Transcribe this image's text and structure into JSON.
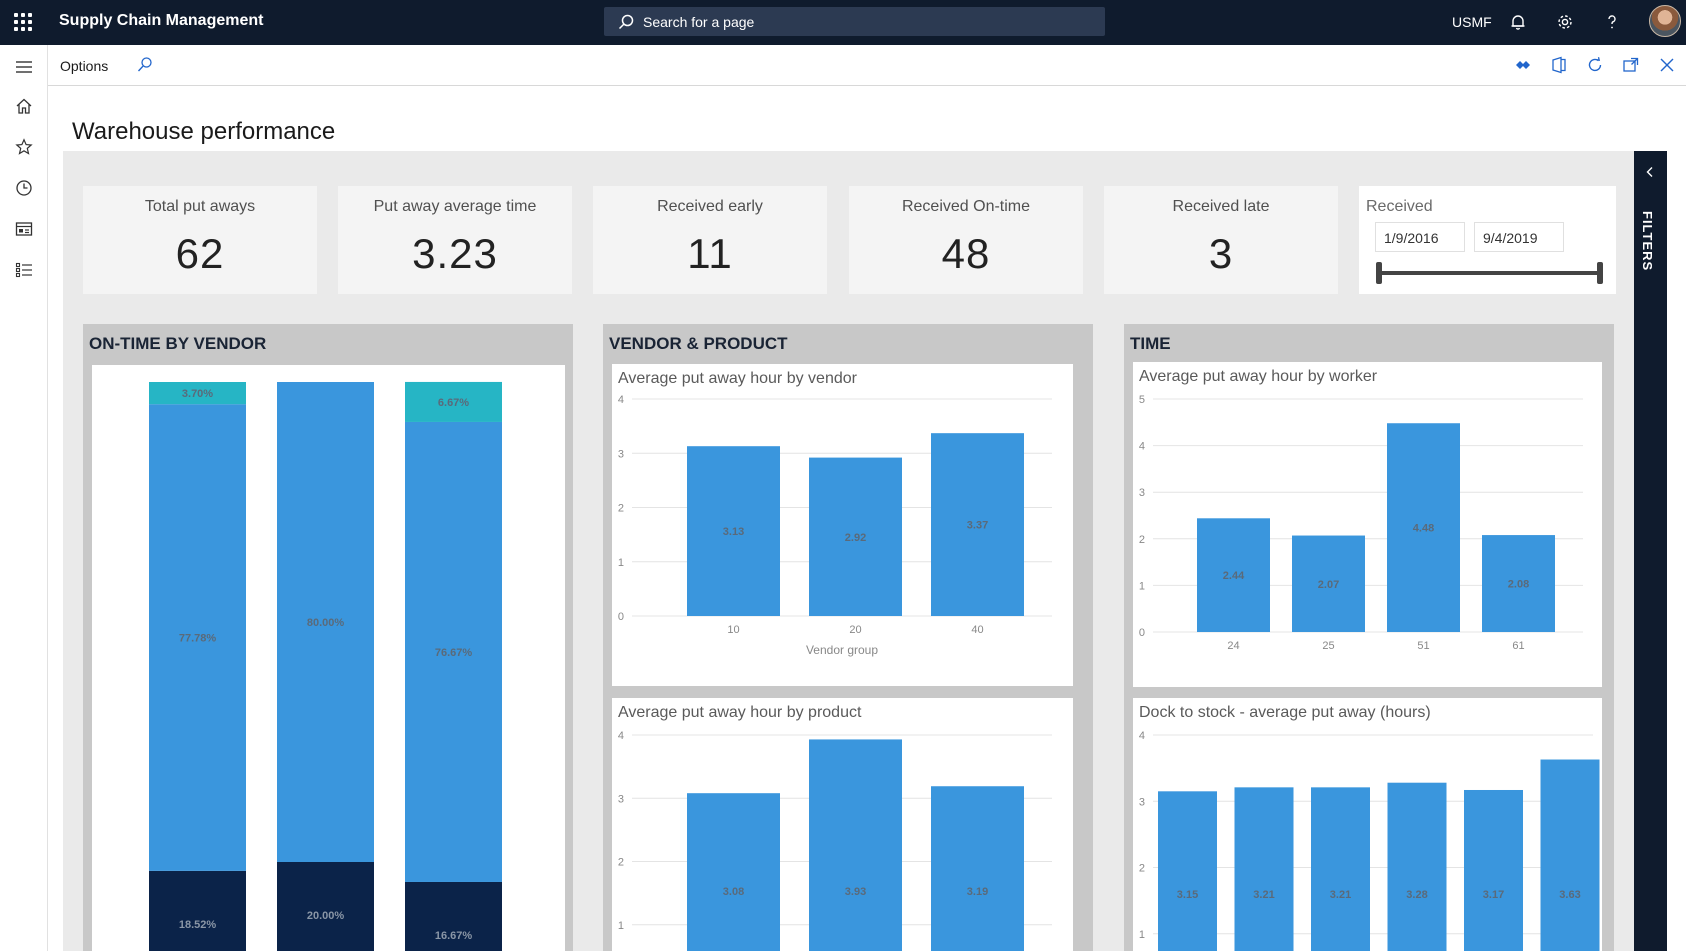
{
  "header": {
    "app_title": "Supply Chain Management",
    "search_placeholder": "Search for a page",
    "company": "USMF"
  },
  "actionbar": {
    "options_label": "Options"
  },
  "page": {
    "title": "Warehouse performance"
  },
  "kpis": [
    {
      "label": "Total put aways",
      "value": "62"
    },
    {
      "label": "Put away average time",
      "value": "3.23"
    },
    {
      "label": "Received early",
      "value": "11"
    },
    {
      "label": "Received On-time",
      "value": "48"
    },
    {
      "label": "Received late",
      "value": "3"
    }
  ],
  "slicer": {
    "label": "Received",
    "start": "1/9/2016",
    "end": "9/4/2019"
  },
  "sections": {
    "ontime": "ON-TIME BY VENDOR",
    "vendor_product": "VENDOR & PRODUCT",
    "time": "TIME"
  },
  "filters": {
    "label": "FILTERS"
  },
  "colors": {
    "bar": "#3a96dd",
    "teal": "#26b5c5",
    "navy": "#0b2349",
    "topbar": "#0f1b2d"
  },
  "chart_data": [
    {
      "type": "bar",
      "stacked": "100%",
      "title": "",
      "categories": [
        "",
        "",
        ""
      ],
      "series": [
        {
          "values": [
            18.52,
            20.0,
            16.67
          ],
          "labels": [
            "18.52%",
            "20.00%",
            "16.67%"
          ]
        },
        {
          "values": [
            77.78,
            80.0,
            76.67
          ],
          "labels": [
            "77.78%",
            "80.00%",
            "76.67%"
          ]
        },
        {
          "values": [
            3.7,
            0,
            6.67
          ],
          "labels": [
            "3.70%",
            "",
            "6.67%"
          ]
        }
      ]
    },
    {
      "type": "bar",
      "title": "Average put away hour by vendor",
      "categories": [
        "10",
        "20",
        "40"
      ],
      "values": [
        3.13,
        2.92,
        3.37
      ],
      "labels": [
        "3.13",
        "2.92",
        "3.37"
      ],
      "xlabel": "Vendor group",
      "ylim": [
        0,
        4
      ],
      "yticks": [
        "0",
        "1",
        "2",
        "3",
        "4"
      ]
    },
    {
      "type": "bar",
      "title": "Average put away hour by worker",
      "categories": [
        "24",
        "25",
        "51",
        "61"
      ],
      "values": [
        2.44,
        2.07,
        4.48,
        2.08
      ],
      "labels": [
        "2.44",
        "2.07",
        "4.48",
        "2.08"
      ],
      "ylim": [
        0,
        5
      ],
      "yticks": [
        "0",
        "1",
        "2",
        "3",
        "4",
        "5"
      ]
    },
    {
      "type": "bar",
      "title": "Average put away hour by product",
      "values": [
        3.08,
        3.93,
        3.19
      ],
      "labels": [
        "3.08",
        "3.93",
        "3.19"
      ],
      "ylim": [
        0,
        4
      ],
      "yticks": [
        "1",
        "2",
        "3",
        "4"
      ]
    },
    {
      "type": "bar",
      "title": "Dock to stock - average put away (hours)",
      "values": [
        3.15,
        3.21,
        3.21,
        3.28,
        3.17,
        3.63
      ],
      "labels": [
        "3.15",
        "3.21",
        "3.21",
        "3.28",
        "3.17",
        "3.63"
      ],
      "ylim": [
        0,
        4
      ],
      "yticks": [
        "1",
        "2",
        "3",
        "4"
      ]
    }
  ]
}
